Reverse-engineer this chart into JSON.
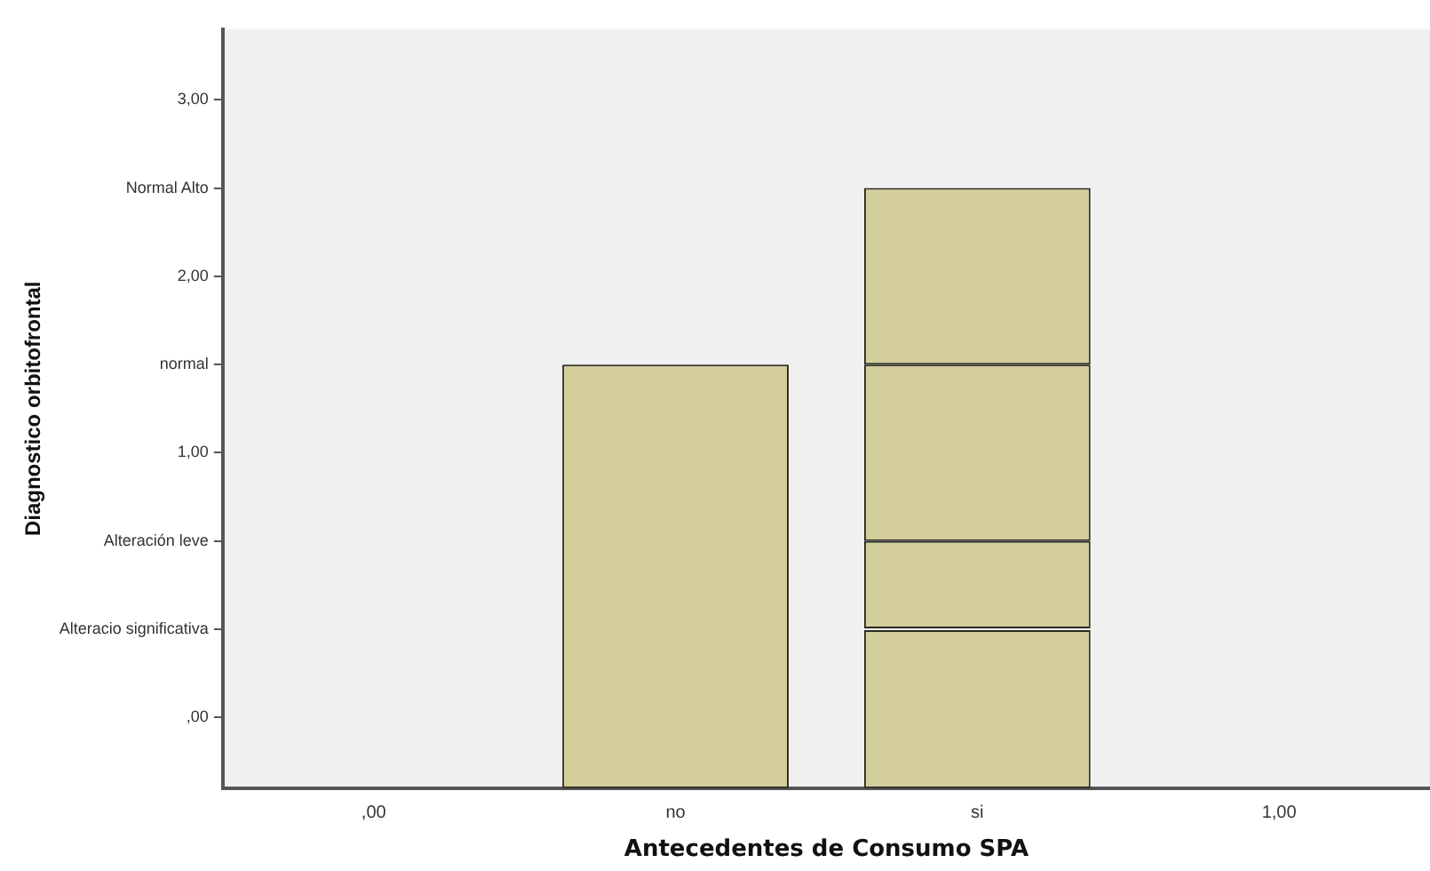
{
  "chart_data": {
    "type": "bar",
    "xlabel": "Antecedentes de Consumo SPA",
    "ylabel": "Diagnostico orbitofrontal",
    "categories": [
      ",00",
      "no",
      "si",
      "1,00"
    ],
    "series": [
      {
        "color": "#d4cf9a",
        "base": [
          null,
          -0.9,
          -0.9,
          null
        ],
        "values": [
          null,
          2.4,
          0.9,
          null
        ]
      },
      {
        "color": "#d4cf9a",
        "base": [
          null,
          null,
          0,
          null
        ],
        "values": [
          null,
          null,
          0.5,
          null
        ]
      },
      {
        "color": "#d4cf9a",
        "base": [
          null,
          null,
          0.5,
          null
        ],
        "values": [
          null,
          null,
          1,
          null
        ]
      },
      {
        "color": "#d4cf9a",
        "base": [
          null,
          null,
          1.5,
          null
        ],
        "values": [
          null,
          null,
          1,
          null
        ]
      }
    ],
    "ylim": [
      -0.9,
      3.4
    ],
    "yticks": [
      {
        "value": -0.5,
        "label": ",00"
      },
      {
        "value": 0,
        "label": "Alteracio significativa"
      },
      {
        "value": 0.5,
        "label": "Alteración leve"
      },
      {
        "value": 1,
        "label": "1,00"
      },
      {
        "value": 1.5,
        "label": "normal"
      },
      {
        "value": 2,
        "label": "2,00"
      },
      {
        "value": 2.5,
        "label": "Normal Alto"
      },
      {
        "value": 3,
        "label": "3,00"
      }
    ],
    "grid": false,
    "legend": false
  }
}
